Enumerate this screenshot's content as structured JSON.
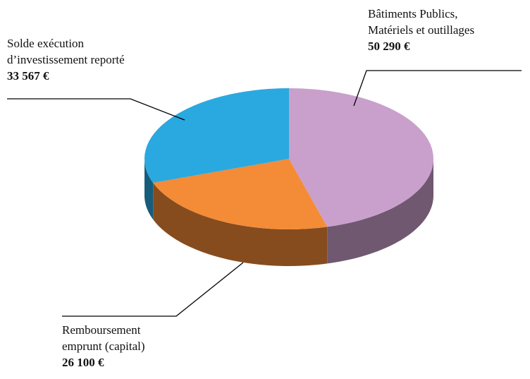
{
  "chart_data": {
    "type": "pie3d",
    "categories": [
      "Bâtiments Publics, Matériels et outillages",
      "Remboursement emprunt (capital)",
      "Solde exécution d’investissement reporté"
    ],
    "values": [
      50290,
      26100,
      33567
    ],
    "value_labels": [
      "50 290 €",
      "26 100 €",
      "33 567 €"
    ],
    "colors": [
      "#c9a0cb",
      "#f48b36",
      "#29a9df"
    ]
  }
}
